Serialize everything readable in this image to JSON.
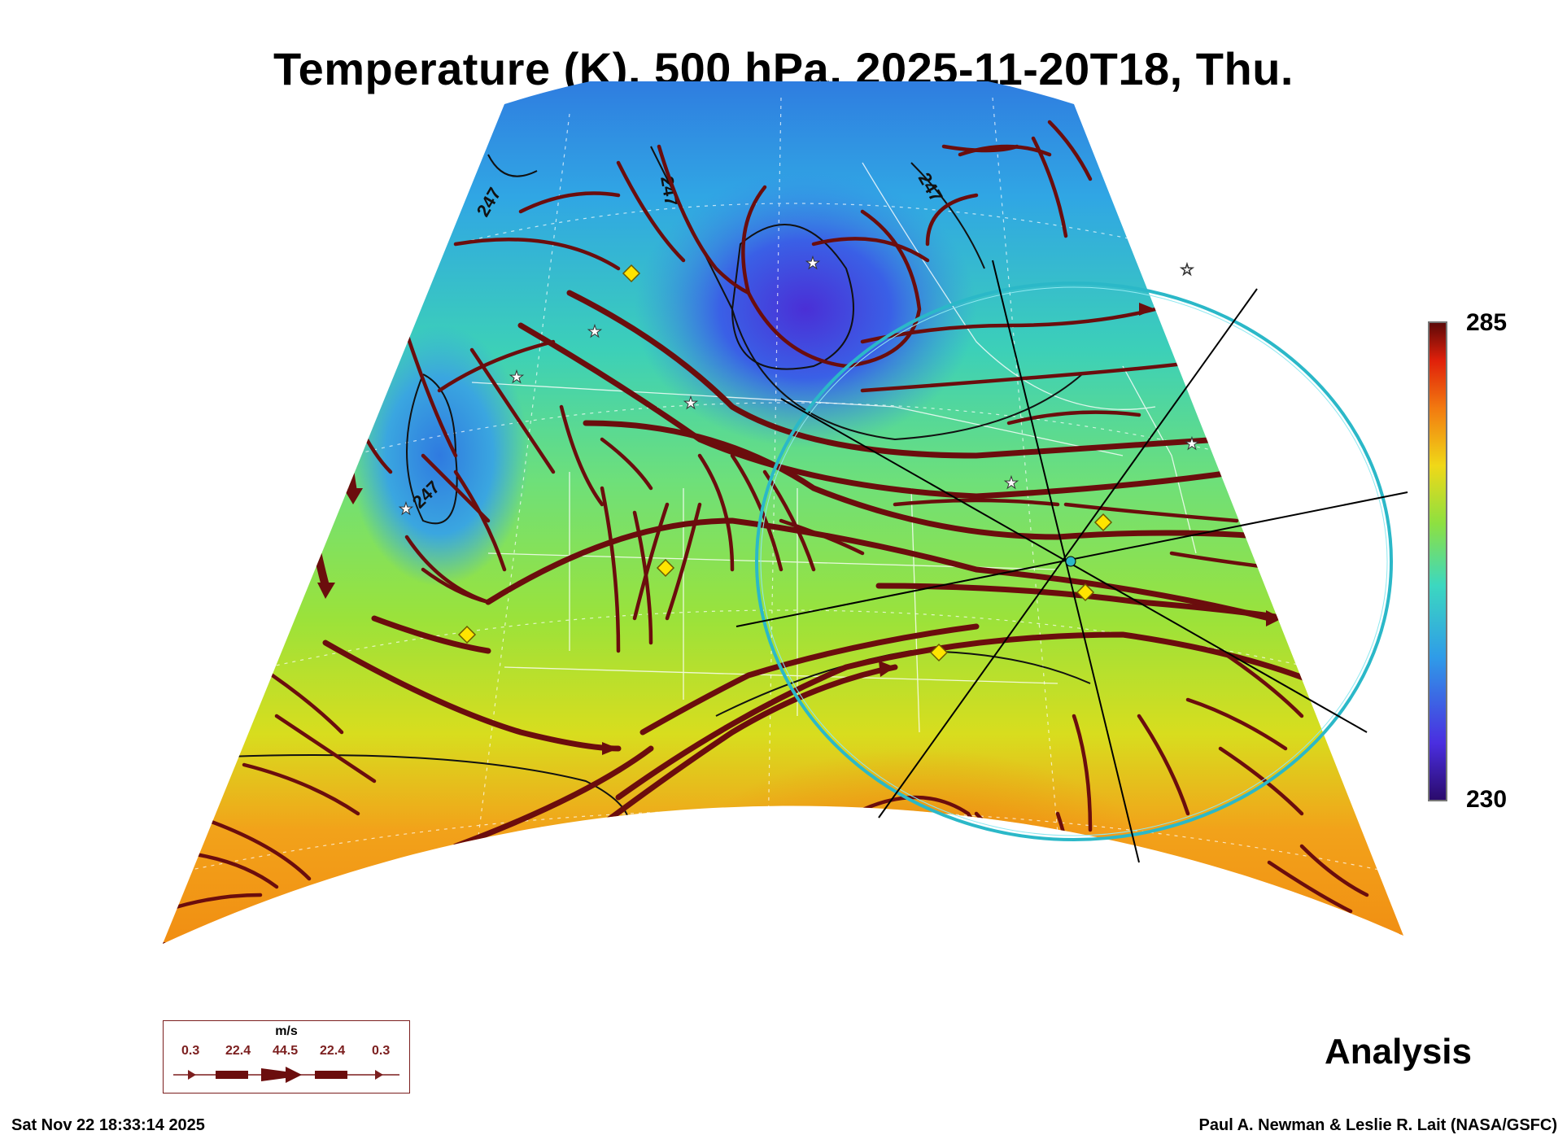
{
  "title": "Temperature (K), 500 hPa, 2025-11-20T18, Thu.",
  "colorbar": {
    "max": "285",
    "min": "230"
  },
  "contour_label": "247",
  "subtitle": "Analysis",
  "footer": {
    "timestamp": "Sat Nov 22 18:33:14 2025",
    "credit": "Paul A. Newman & Leslie R. Lait (NASA/GSFC)"
  },
  "legend": {
    "unit": "m/s",
    "values": [
      "0.3",
      "22.4",
      "44.5",
      "22.4",
      "0.3"
    ]
  },
  "colors": {
    "streamline": "#6b0d0d",
    "ring": "#2bb8c8",
    "marker_fill": "#ffe400"
  }
}
